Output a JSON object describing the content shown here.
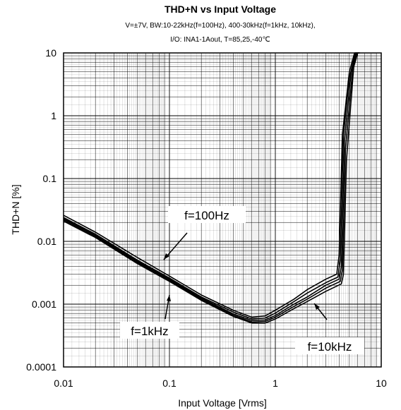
{
  "chart_data": {
    "type": "line",
    "title": "THD+N vs Input Voltage",
    "subtitle_lines": [
      "V=±7V, BW:10-22kHz(f=100Hz), 400-30kHz(f=1kHz, 10kHz),",
      "I/O: INA1-1Aout, T=85,25,-40℃"
    ],
    "xlabel": "Input Voltage [Vrms]",
    "ylabel": "THD+N [%]",
    "x_scale": "log",
    "y_scale": "log",
    "xlim": [
      0.01,
      10
    ],
    "ylim": [
      0.0001,
      10
    ],
    "x_ticks": [
      "0.01",
      "0.1",
      "1",
      "10"
    ],
    "y_ticks": [
      "0.0001",
      "0.001",
      "0.01",
      "0.1",
      "1",
      "10"
    ],
    "grid": true,
    "annotations": [
      "f=100Hz",
      "f=1kHz",
      "f=10kHz"
    ],
    "series": [
      {
        "x": [
          0.01,
          0.02,
          0.05,
          0.1,
          0.2,
          0.4,
          0.6,
          0.8,
          1,
          1.5,
          2,
          3,
          3.8,
          4.0,
          4.3,
          5,
          5.6,
          5.9
        ],
        "y": [
          0.026,
          0.014,
          0.0055,
          0.0028,
          0.0014,
          0.0008,
          0.00062,
          0.00065,
          0.0008,
          0.0012,
          0.0017,
          0.0025,
          0.003,
          0.006,
          0.5,
          5,
          10,
          10
        ]
      },
      {
        "x": [
          0.01,
          0.02,
          0.05,
          0.1,
          0.2,
          0.4,
          0.6,
          0.8,
          1,
          1.5,
          2,
          3,
          3.9,
          4.1,
          4.4,
          5,
          5.7,
          6.0
        ],
        "y": [
          0.024,
          0.013,
          0.005,
          0.0026,
          0.0013,
          0.00075,
          0.00058,
          0.0006,
          0.00072,
          0.0011,
          0.0015,
          0.0022,
          0.0027,
          0.005,
          0.5,
          4,
          10,
          10
        ]
      },
      {
        "x": [
          0.01,
          0.02,
          0.05,
          0.1,
          0.2,
          0.4,
          0.6,
          0.8,
          1,
          1.5,
          2,
          3,
          4.0,
          4.2,
          4.5,
          5.2,
          5.8,
          6.1
        ],
        "y": [
          0.023,
          0.0125,
          0.0048,
          0.0025,
          0.00125,
          0.0007,
          0.00055,
          0.00056,
          0.00066,
          0.001,
          0.0013,
          0.002,
          0.0025,
          0.004,
          0.4,
          5,
          10,
          10
        ]
      },
      {
        "x": [
          0.01,
          0.02,
          0.05,
          0.1,
          0.2,
          0.4,
          0.6,
          0.8,
          1,
          1.5,
          2,
          3,
          4.1,
          4.3,
          4.6,
          5.4,
          5.9,
          6.2
        ],
        "y": [
          0.022,
          0.012,
          0.0046,
          0.0024,
          0.0012,
          0.00067,
          0.00052,
          0.00053,
          0.00062,
          0.00092,
          0.0012,
          0.0018,
          0.0023,
          0.0035,
          0.3,
          6,
          10,
          10
        ]
      },
      {
        "x": [
          0.01,
          0.02,
          0.05,
          0.1,
          0.2,
          0.4,
          0.6,
          0.8,
          1,
          1.5,
          2,
          3,
          4.2,
          4.4,
          4.7,
          5.5,
          6.0,
          6.3
        ],
        "y": [
          0.021,
          0.0115,
          0.0044,
          0.0023,
          0.00115,
          0.00064,
          0.0005,
          0.0005,
          0.00058,
          0.00085,
          0.0011,
          0.0016,
          0.0021,
          0.003,
          0.2,
          6,
          10,
          10
        ]
      }
    ]
  }
}
